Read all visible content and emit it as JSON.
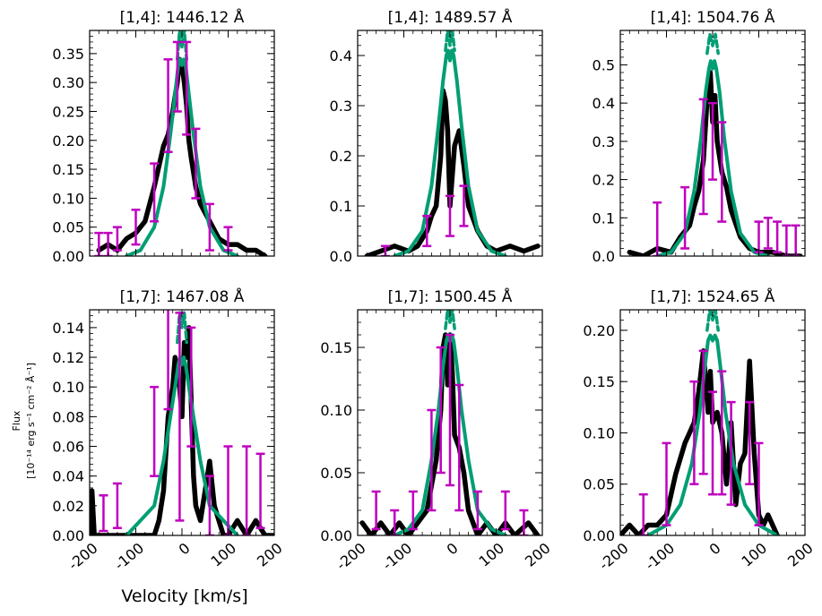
{
  "figure": {
    "xlabel": "Velocity [km/s]",
    "ylabel_line1": "Flux",
    "ylabel_line2": "[10⁻¹⁴ erg s⁻¹ cm⁻² Å⁻¹]"
  },
  "colors": {
    "data": "#000000",
    "model": "#009e73",
    "errorbars": "#bf00bf"
  },
  "chart_data": [
    {
      "type": "line",
      "title": "[1,4]: 1446.12 Å",
      "xlim": [
        -200,
        200
      ],
      "ylim": [
        0,
        0.39
      ],
      "yticks": [
        0.0,
        0.05,
        0.1,
        0.15,
        0.2,
        0.25,
        0.3,
        0.35
      ],
      "xticks": [
        -200,
        -100,
        0,
        100,
        200
      ],
      "xticklabels": [
        "",
        "",
        "",
        "",
        ""
      ],
      "series": [
        {
          "role": "data",
          "x": [
            -180,
            -160,
            -140,
            -120,
            -100,
            -80,
            -60,
            -40,
            -30,
            -20,
            -10,
            -5,
            0,
            5,
            10,
            15,
            20,
            30,
            40,
            60,
            80,
            100,
            120,
            140,
            160,
            180
          ],
          "y": [
            0.01,
            0.02,
            0.01,
            0.03,
            0.04,
            0.06,
            0.12,
            0.19,
            0.21,
            0.25,
            0.3,
            0.34,
            0.33,
            0.3,
            0.26,
            0.2,
            0.17,
            0.12,
            0.09,
            0.06,
            0.03,
            0.02,
            0.02,
            0.01,
            0.01,
            0.0
          ]
        },
        {
          "role": "model",
          "x": [
            -120,
            -90,
            -60,
            -40,
            -25,
            -15,
            -8,
            -4,
            0,
            4,
            8,
            15,
            25,
            40,
            60,
            90,
            120
          ],
          "y": [
            0.0,
            0.01,
            0.05,
            0.12,
            0.21,
            0.28,
            0.33,
            0.34,
            0.33,
            0.34,
            0.33,
            0.28,
            0.21,
            0.12,
            0.05,
            0.01,
            0.0
          ]
        },
        {
          "role": "model-dashed",
          "x": [
            -10,
            -5,
            0,
            5,
            10
          ],
          "y": [
            0.34,
            0.39,
            0.36,
            0.39,
            0.34
          ]
        },
        {
          "role": "errorbars",
          "x": [
            -180,
            -160,
            -140,
            -100,
            -60,
            -30,
            -10,
            10,
            30,
            60,
            100
          ],
          "y": [
            0.02,
            0.02,
            0.03,
            0.05,
            0.11,
            0.26,
            0.31,
            0.29,
            0.16,
            0.05,
            0.03
          ],
          "err": [
            0.02,
            0.02,
            0.02,
            0.03,
            0.05,
            0.08,
            0.06,
            0.08,
            0.06,
            0.04,
            0.02
          ]
        }
      ]
    },
    {
      "type": "line",
      "title": "[1,4]: 1489.57 Å",
      "xlim": [
        -200,
        200
      ],
      "ylim": [
        0,
        0.45
      ],
      "yticks": [
        0.0,
        0.1,
        0.2,
        0.3,
        0.4
      ],
      "xticks": [
        -200,
        -100,
        0,
        100,
        200
      ],
      "xticklabels": [
        "",
        "",
        "",
        "",
        ""
      ],
      "series": [
        {
          "role": "data",
          "x": [
            -180,
            -150,
            -120,
            -90,
            -70,
            -50,
            -40,
            -30,
            -20,
            -15,
            -10,
            -5,
            0,
            10,
            20,
            30,
            40,
            60,
            80,
            100,
            130,
            160,
            190
          ],
          "y": [
            0.0,
            0.01,
            0.02,
            0.01,
            0.02,
            0.05,
            0.08,
            0.1,
            0.2,
            0.33,
            0.31,
            0.25,
            0.1,
            0.22,
            0.25,
            0.18,
            0.1,
            0.05,
            0.02,
            0.01,
            0.02,
            0.01,
            0.02
          ]
        },
        {
          "role": "model",
          "x": [
            -120,
            -90,
            -60,
            -40,
            -25,
            -15,
            -8,
            -4,
            0,
            4,
            8,
            15,
            25,
            40,
            60,
            90,
            120
          ],
          "y": [
            0.0,
            0.01,
            0.05,
            0.14,
            0.26,
            0.35,
            0.4,
            0.41,
            0.39,
            0.41,
            0.4,
            0.35,
            0.26,
            0.14,
            0.05,
            0.01,
            0.0
          ]
        },
        {
          "role": "model-dashed",
          "x": [
            -10,
            -5,
            0,
            5,
            10
          ],
          "y": [
            0.41,
            0.45,
            0.42,
            0.45,
            0.41
          ]
        },
        {
          "role": "errorbars",
          "x": [
            -140,
            -50,
            0,
            30
          ],
          "y": [
            0.01,
            0.05,
            0.08,
            0.1
          ],
          "err": [
            0.01,
            0.03,
            0.04,
            0.04
          ]
        }
      ]
    },
    {
      "type": "line",
      "title": "[1,4]: 1504.76 Å",
      "xlim": [
        -200,
        200
      ],
      "ylim": [
        0,
        0.59
      ],
      "yticks": [
        0.0,
        0.1,
        0.2,
        0.3,
        0.4,
        0.5
      ],
      "xticks": [
        -200,
        -100,
        0,
        100,
        200
      ],
      "xticklabels": [
        "",
        "",
        "",
        "",
        ""
      ],
      "series": [
        {
          "role": "data",
          "x": [
            -180,
            -150,
            -120,
            -90,
            -70,
            -50,
            -40,
            -30,
            -20,
            -10,
            -5,
            0,
            5,
            10,
            20,
            30,
            40,
            60,
            80,
            100,
            130,
            160,
            190
          ],
          "y": [
            0.01,
            0.0,
            0.02,
            0.01,
            0.05,
            0.08,
            0.13,
            0.17,
            0.25,
            0.45,
            0.48,
            0.35,
            0.42,
            0.3,
            0.22,
            0.18,
            0.12,
            0.05,
            0.02,
            0.01,
            0.01,
            0.0,
            0.0
          ]
        },
        {
          "role": "model",
          "x": [
            -120,
            -90,
            -60,
            -40,
            -25,
            -15,
            -8,
            -4,
            0,
            4,
            8,
            15,
            25,
            40,
            60,
            90,
            120
          ],
          "y": [
            0.0,
            0.01,
            0.06,
            0.17,
            0.31,
            0.43,
            0.49,
            0.51,
            0.49,
            0.51,
            0.49,
            0.43,
            0.31,
            0.17,
            0.06,
            0.01,
            0.0
          ]
        },
        {
          "role": "model-dashed",
          "x": [
            -12,
            -6,
            0,
            6,
            12
          ],
          "y": [
            0.53,
            0.58,
            0.55,
            0.58,
            0.53
          ]
        },
        {
          "role": "errorbars",
          "x": [
            -120,
            -60,
            -20,
            0,
            20,
            100,
            120,
            140,
            160,
            180
          ],
          "y": [
            0.07,
            0.1,
            0.26,
            0.3,
            0.22,
            0.05,
            0.06,
            0.05,
            0.04,
            0.04
          ],
          "err": [
            0.07,
            0.08,
            0.15,
            0.1,
            0.13,
            0.04,
            0.04,
            0.04,
            0.04,
            0.04
          ]
        }
      ]
    },
    {
      "type": "line",
      "title": "[1,7]: 1467.08 Å",
      "xlim": [
        -200,
        200
      ],
      "ylim": [
        0,
        0.152
      ],
      "yticks": [
        0.0,
        0.02,
        0.04,
        0.06,
        0.08,
        0.1,
        0.12,
        0.14
      ],
      "xticks": [
        -200,
        -100,
        0,
        100,
        200
      ],
      "xticklabels": [
        "-200",
        "-100",
        "0",
        "100",
        "200"
      ],
      "series": [
        {
          "role": "data",
          "x": [
            -200,
            -195,
            -190,
            -180,
            -160,
            -140,
            -120,
            -100,
            -80,
            -60,
            -50,
            -40,
            -30,
            -20,
            -15,
            -10,
            -5,
            0,
            5,
            10,
            15,
            20,
            25,
            30,
            40,
            50,
            60,
            70,
            80,
            90,
            100,
            120,
            140,
            160,
            180,
            200
          ],
          "y": [
            0.0,
            0.03,
            0.0,
            0.0,
            0.0,
            0.0,
            0.0,
            0.0,
            0.0,
            0.0,
            0.01,
            0.03,
            0.08,
            0.1,
            0.12,
            0.11,
            0.1,
            0.08,
            0.13,
            0.12,
            0.14,
            0.09,
            0.04,
            0.02,
            0.01,
            0.03,
            0.05,
            0.02,
            0.01,
            0.0,
            0.0,
            0.01,
            0.0,
            0.01,
            0.0,
            0.0
          ]
        },
        {
          "role": "model",
          "x": [
            -120,
            -90,
            -60,
            -40,
            -25,
            -15,
            -8,
            -4,
            0,
            4,
            8,
            15,
            25,
            40,
            60,
            90,
            120
          ],
          "y": [
            0.0,
            0.01,
            0.02,
            0.05,
            0.08,
            0.1,
            0.115,
            0.12,
            0.115,
            0.12,
            0.115,
            0.1,
            0.08,
            0.05,
            0.02,
            0.01,
            0.0
          ]
        },
        {
          "role": "model-dashed",
          "x": [
            -10,
            -5,
            0,
            5,
            10
          ],
          "y": [
            0.13,
            0.15,
            0.14,
            0.15,
            0.13
          ]
        },
        {
          "role": "errorbars",
          "x": [
            -170,
            -140,
            -60,
            -30,
            -5,
            20,
            60,
            100,
            140,
            170
          ],
          "y": [
            0.015,
            0.02,
            0.07,
            0.12,
            0.08,
            0.1,
            0.02,
            0.03,
            0.03,
            0.03
          ],
          "err": [
            0.012,
            0.015,
            0.03,
            0.035,
            0.07,
            0.04,
            0.02,
            0.03,
            0.03,
            0.025
          ]
        }
      ]
    },
    {
      "type": "line",
      "title": "[1,7]: 1500.45 Å",
      "xlim": [
        -200,
        200
      ],
      "ylim": [
        0,
        0.18
      ],
      "yticks": [
        0.0,
        0.05,
        0.1,
        0.15
      ],
      "xticks": [
        -200,
        -100,
        0,
        100,
        200
      ],
      "xticklabels": [
        "-200",
        "-100",
        "0",
        "100",
        "200"
      ],
      "series": [
        {
          "role": "data",
          "x": [
            -190,
            -170,
            -150,
            -130,
            -110,
            -90,
            -70,
            -50,
            -40,
            -30,
            -20,
            -15,
            -10,
            -5,
            0,
            5,
            10,
            20,
            30,
            40,
            60,
            80,
            100,
            120,
            140,
            170,
            190
          ],
          "y": [
            0.01,
            0.0,
            0.01,
            0.0,
            0.01,
            0.0,
            0.01,
            0.02,
            0.04,
            0.06,
            0.1,
            0.15,
            0.16,
            0.12,
            0.16,
            0.13,
            0.08,
            0.07,
            0.05,
            0.02,
            0.0,
            0.01,
            0.0,
            0.01,
            0.0,
            0.01,
            0.0
          ]
        },
        {
          "role": "model",
          "x": [
            -120,
            -90,
            -60,
            -40,
            -25,
            -15,
            -8,
            -4,
            0,
            4,
            8,
            15,
            25,
            40,
            60,
            90,
            120
          ],
          "y": [
            0.0,
            0.005,
            0.02,
            0.06,
            0.1,
            0.135,
            0.155,
            0.16,
            0.155,
            0.16,
            0.155,
            0.135,
            0.1,
            0.06,
            0.02,
            0.005,
            0.0
          ]
        },
        {
          "role": "model-dashed",
          "x": [
            -10,
            -5,
            0,
            5,
            10
          ],
          "y": [
            0.165,
            0.18,
            0.17,
            0.18,
            0.165
          ]
        },
        {
          "role": "errorbars",
          "x": [
            -160,
            -120,
            -80,
            -40,
            -20,
            0,
            20,
            60,
            120,
            160
          ],
          "y": [
            0.02,
            0.01,
            0.02,
            0.06,
            0.1,
            0.1,
            0.07,
            0.02,
            0.02,
            0.01
          ],
          "err": [
            0.015,
            0.01,
            0.015,
            0.04,
            0.05,
            0.06,
            0.05,
            0.015,
            0.015,
            0.01
          ]
        }
      ]
    },
    {
      "type": "line",
      "title": "[1,7]: 1524.65 Å",
      "xlim": [
        -200,
        200
      ],
      "ylim": [
        0,
        0.22
      ],
      "yticks": [
        0.0,
        0.05,
        0.1,
        0.15,
        0.2
      ],
      "xticks": [
        -200,
        -100,
        0,
        100,
        200
      ],
      "xticklabels": [
        "-200",
        "-100",
        "0",
        "100",
        "200"
      ],
      "series": [
        {
          "role": "data",
          "x": [
            -200,
            -180,
            -160,
            -140,
            -120,
            -100,
            -80,
            -60,
            -40,
            -30,
            -20,
            -10,
            -5,
            0,
            10,
            20,
            30,
            40,
            50,
            60,
            70,
            80,
            90,
            100,
            110,
            120,
            140
          ],
          "y": [
            0.0,
            0.01,
            0.0,
            0.01,
            0.01,
            0.02,
            0.06,
            0.09,
            0.11,
            0.14,
            0.18,
            0.12,
            0.16,
            0.11,
            0.12,
            0.1,
            0.05,
            0.11,
            0.03,
            0.07,
            0.08,
            0.17,
            0.08,
            0.02,
            0.01,
            0.02,
            0.0
          ]
        },
        {
          "role": "model",
          "x": [
            -140,
            -100,
            -70,
            -45,
            -28,
            -18,
            -10,
            -5,
            0,
            5,
            10,
            18,
            28,
            45,
            70,
            100,
            140
          ],
          "y": [
            0.0,
            0.01,
            0.03,
            0.07,
            0.12,
            0.16,
            0.19,
            0.195,
            0.19,
            0.195,
            0.19,
            0.16,
            0.12,
            0.07,
            0.03,
            0.01,
            0.0
          ]
        },
        {
          "role": "model-dashed",
          "x": [
            -12,
            -6,
            0,
            6,
            12
          ],
          "y": [
            0.2,
            0.22,
            0.21,
            0.22,
            0.2
          ]
        },
        {
          "role": "errorbars",
          "x": [
            -150,
            -100,
            -40,
            -20,
            0,
            20,
            40,
            80,
            100
          ],
          "y": [
            0.02,
            0.05,
            0.1,
            0.12,
            0.09,
            0.1,
            0.08,
            0.09,
            0.05
          ],
          "err": [
            0.02,
            0.04,
            0.05,
            0.06,
            0.05,
            0.06,
            0.05,
            0.04,
            0.04
          ]
        }
      ]
    }
  ]
}
